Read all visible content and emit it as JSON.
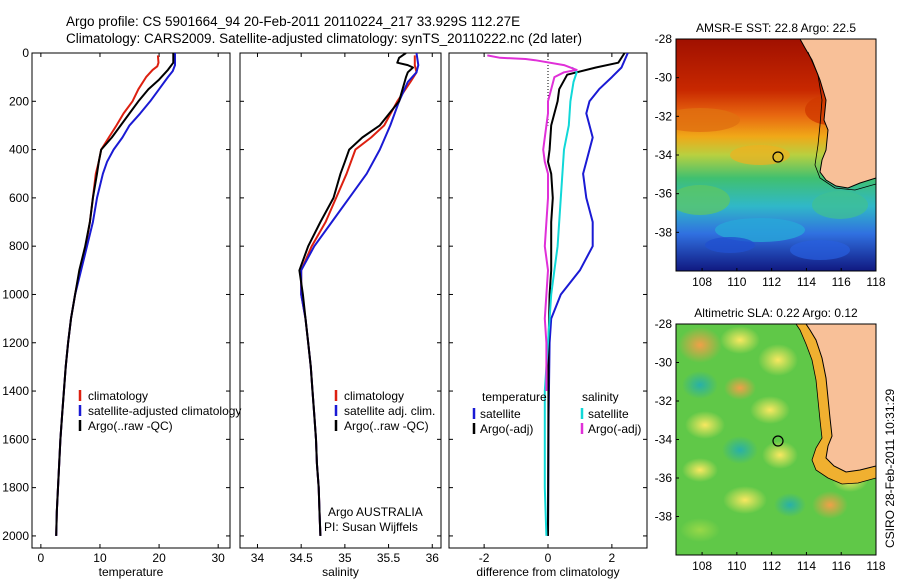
{
  "header": {
    "line1": "Argo profile: CS 5901664_94 20-Feb-2011 20110224_217 33.929S 112.27E",
    "line2": "Climatology: CARS2009. Satellite-adjusted climatology: synTS_20110222.nc (2d later)"
  },
  "side_label": "CSIRO 28-Feb-2011 10:31:29",
  "chart_data": [
    {
      "type": "line",
      "xlabel": "temperature",
      "xlim": [
        -1.5,
        32
      ],
      "ylim": [
        2050,
        0
      ],
      "xticks": [
        "0",
        "10",
        "20",
        "30"
      ],
      "yticks": [
        "0",
        "200",
        "400",
        "600",
        "800",
        "1000",
        "1200",
        "1400",
        "1600",
        "1800",
        "2000"
      ],
      "legend_placement": "center-right",
      "legend": [
        "climatology",
        "satellite-adjusted climatology",
        "Argo(..raw -QC)"
      ],
      "series": [
        {
          "name": "climatology",
          "color": "#dd2010",
          "points": [
            [
              19.8,
              10
            ],
            [
              19.9,
              40
            ],
            [
              19.7,
              55
            ],
            [
              18.9,
              70
            ],
            [
              17.8,
              100
            ],
            [
              16.5,
              150
            ],
            [
              15.5,
              200
            ],
            [
              14,
              250
            ],
            [
              12.8,
              300
            ],
            [
              11.5,
              350
            ],
            [
              10.2,
              400
            ],
            [
              9.8,
              450
            ],
            [
              9.3,
              500
            ],
            [
              8.8,
              600
            ],
            [
              8.3,
              700
            ],
            [
              7.6,
              800
            ],
            [
              6.6,
              900
            ],
            [
              5.8,
              1000
            ],
            [
              5.1,
              1100
            ],
            [
              4.6,
              1200
            ],
            [
              4.2,
              1300
            ],
            [
              3.9,
              1400
            ],
            [
              3.6,
              1500
            ],
            [
              3.3,
              1600
            ],
            [
              3.1,
              1700
            ],
            [
              2.9,
              1800
            ],
            [
              2.7,
              1900
            ],
            [
              2.6,
              2000
            ]
          ]
        },
        {
          "name": "satellite-adjusted climatology",
          "color": "#1a1ad4",
          "points": [
            [
              22.7,
              0
            ],
            [
              22.7,
              50
            ],
            [
              22.3,
              75
            ],
            [
              21.5,
              100
            ],
            [
              20,
              150
            ],
            [
              18.5,
              200
            ],
            [
              16.8,
              250
            ],
            [
              15,
              300
            ],
            [
              13.8,
              350
            ],
            [
              12.3,
              400
            ],
            [
              11.2,
              450
            ],
            [
              10.5,
              500
            ],
            [
              9.5,
              600
            ],
            [
              8.8,
              700
            ],
            [
              7.8,
              800
            ],
            [
              6.8,
              900
            ],
            [
              5.8,
              1000
            ],
            [
              5.1,
              1100
            ],
            [
              4.6,
              1200
            ],
            [
              4.2,
              1300
            ],
            [
              3.9,
              1400
            ],
            [
              3.6,
              1500
            ],
            [
              3.3,
              1600
            ],
            [
              3.1,
              1700
            ],
            [
              2.9,
              1800
            ],
            [
              2.7,
              1900
            ],
            [
              2.6,
              2000
            ]
          ]
        },
        {
          "name": "Argo(..raw -QC)",
          "color": "#000000",
          "points": [
            [
              22.4,
              0
            ],
            [
              22.4,
              40
            ],
            [
              21.5,
              70
            ],
            [
              20,
              110
            ],
            [
              18.2,
              150
            ],
            [
              16.5,
              200
            ],
            [
              15,
              250
            ],
            [
              13.5,
              300
            ],
            [
              12,
              350
            ],
            [
              10.2,
              400
            ],
            [
              9.8,
              450
            ],
            [
              9.5,
              500
            ],
            [
              8.8,
              600
            ],
            [
              8.3,
              700
            ],
            [
              7.5,
              800
            ],
            [
              6.5,
              900
            ],
            [
              5.8,
              1000
            ],
            [
              5.1,
              1100
            ],
            [
              4.6,
              1200
            ],
            [
              4.2,
              1300
            ],
            [
              3.9,
              1400
            ],
            [
              3.6,
              1500
            ],
            [
              3.3,
              1600
            ],
            [
              3.1,
              1700
            ],
            [
              2.9,
              1800
            ],
            [
              2.7,
              1900
            ],
            [
              2.6,
              2000
            ]
          ]
        }
      ]
    },
    {
      "type": "line",
      "xlabel": "salinity",
      "xlim": [
        33.8,
        36.1
      ],
      "ylim": [
        2050,
        0
      ],
      "xticks": [
        "34",
        "34.5",
        "35",
        "35.5",
        "36"
      ],
      "legend_placement": "center-right",
      "legend": [
        "climatology",
        "satellite adj. clim.",
        "Argo(..raw -QC)"
      ],
      "annotation": [
        "Argo AUSTRALIA",
        "PI: Susan Wijffels"
      ],
      "series": [
        {
          "name": "climatology",
          "color": "#dd2010",
          "points": [
            [
              35.8,
              10
            ],
            [
              35.8,
              50
            ],
            [
              35.82,
              80
            ],
            [
              35.75,
              120
            ],
            [
              35.6,
              200
            ],
            [
              35.45,
              300
            ],
            [
              35.3,
              350
            ],
            [
              35.12,
              400
            ],
            [
              35.02,
              500
            ],
            [
              34.9,
              600
            ],
            [
              34.78,
              700
            ],
            [
              34.62,
              800
            ],
            [
              34.5,
              900
            ],
            [
              34.5,
              1000
            ],
            [
              34.55,
              1100
            ],
            [
              34.58,
              1200
            ],
            [
              34.61,
              1300
            ],
            [
              34.63,
              1400
            ],
            [
              34.65,
              1500
            ],
            [
              34.67,
              1600
            ],
            [
              34.68,
              1700
            ],
            [
              34.7,
              1800
            ],
            [
              34.71,
              1900
            ],
            [
              34.72,
              2000
            ]
          ]
        },
        {
          "name": "satellite adj. clim.",
          "color": "#1a1ad4",
          "points": [
            [
              35.82,
              0
            ],
            [
              35.84,
              50
            ],
            [
              35.82,
              80
            ],
            [
              35.72,
              120
            ],
            [
              35.62,
              200
            ],
            [
              35.52,
              300
            ],
            [
              35.4,
              400
            ],
            [
              35.25,
              500
            ],
            [
              35.05,
              600
            ],
            [
              34.85,
              700
            ],
            [
              34.65,
              800
            ],
            [
              34.5,
              900
            ],
            [
              34.5,
              1000
            ],
            [
              34.55,
              1100
            ],
            [
              34.58,
              1200
            ],
            [
              34.61,
              1300
            ],
            [
              34.63,
              1400
            ],
            [
              34.65,
              1500
            ],
            [
              34.67,
              1600
            ],
            [
              34.68,
              1700
            ],
            [
              34.7,
              1800
            ],
            [
              34.71,
              1900
            ],
            [
              34.72,
              2000
            ]
          ]
        },
        {
          "name": "Argo(..raw -QC)",
          "color": "#000000",
          "points": [
            [
              35.7,
              0
            ],
            [
              35.62,
              20
            ],
            [
              35.6,
              40
            ],
            [
              35.72,
              50
            ],
            [
              35.78,
              60
            ],
            [
              35.72,
              80
            ],
            [
              35.7,
              100
            ],
            [
              35.62,
              200
            ],
            [
              35.4,
              300
            ],
            [
              35.2,
              350
            ],
            [
              35.05,
              400
            ],
            [
              35,
              450
            ],
            [
              34.95,
              500
            ],
            [
              34.87,
              600
            ],
            [
              34.72,
              700
            ],
            [
              34.58,
              800
            ],
            [
              34.48,
              900
            ],
            [
              34.52,
              1000
            ],
            [
              34.55,
              1100
            ],
            [
              34.58,
              1200
            ],
            [
              34.61,
              1300
            ],
            [
              34.63,
              1400
            ],
            [
              34.65,
              1500
            ],
            [
              34.67,
              1600
            ],
            [
              34.68,
              1700
            ],
            [
              34.7,
              1800
            ],
            [
              34.71,
              1900
            ],
            [
              34.72,
              2000
            ]
          ]
        }
      ]
    },
    {
      "type": "line",
      "xlabel": "difference from climatology",
      "xlim": [
        -3.1,
        3.1
      ],
      "ylim": [
        2050,
        0
      ],
      "xticks": [
        "-2",
        "0",
        "2"
      ],
      "legend_placement": "center",
      "legend_groups": [
        {
          "title": "temperature",
          "items": [
            "satellite",
            "Argo(-adj)"
          ]
        },
        {
          "title": "salinity",
          "items": [
            "satellite",
            "Argo(-adj)"
          ]
        }
      ],
      "series": [
        {
          "name": "temperature satellite",
          "color": "#1a1ad4",
          "points": [
            [
              2.5,
              0
            ],
            [
              2.3,
              60
            ],
            [
              2.0,
              100
            ],
            [
              1.6,
              150
            ],
            [
              1.3,
              200
            ],
            [
              1.2,
              250
            ],
            [
              1.3,
              300
            ],
            [
              1.4,
              350
            ],
            [
              1.3,
              400
            ],
            [
              1.2,
              450
            ],
            [
              1.1,
              500
            ],
            [
              1.2,
              600
            ],
            [
              1.4,
              700
            ],
            [
              1.4,
              800
            ],
            [
              1.0,
              900
            ],
            [
              0.4,
              1000
            ],
            [
              0.1,
              1100
            ],
            [
              0.05,
              1200
            ],
            [
              0.02,
              1500
            ],
            [
              0.0,
              2000
            ]
          ]
        },
        {
          "name": "temperature Argo(-adj)",
          "color": "#000000",
          "points": [
            [
              2.4,
              0
            ],
            [
              2.2,
              40
            ],
            [
              1.5,
              60
            ],
            [
              0.6,
              90
            ],
            [
              0.35,
              150
            ],
            [
              0.3,
              200
            ],
            [
              0.1,
              300
            ],
            [
              0.05,
              400
            ],
            [
              0.0,
              450
            ],
            [
              0.1,
              500
            ],
            [
              0.15,
              600
            ],
            [
              0.1,
              700
            ],
            [
              0.1,
              800
            ],
            [
              0.1,
              900
            ],
            [
              0.05,
              1000
            ],
            [
              0.02,
              1200
            ],
            [
              0.0,
              2000
            ]
          ]
        },
        {
          "name": "salinity satellite",
          "color": "#10d8d8",
          "points": [
            [
              0.75,
              60
            ],
            [
              0.9,
              80
            ],
            [
              0.8,
              120
            ],
            [
              0.7,
              200
            ],
            [
              0.65,
              300
            ],
            [
              0.5,
              400
            ],
            [
              0.45,
              500
            ],
            [
              0.4,
              600
            ],
            [
              0.35,
              700
            ],
            [
              0.3,
              800
            ],
            [
              0.2,
              900
            ],
            [
              0.1,
              1000
            ],
            [
              0.05,
              1100
            ],
            [
              -0.1,
              1400
            ],
            [
              -0.1,
              1800
            ],
            [
              -0.05,
              2000
            ]
          ]
        },
        {
          "name": "salinity Argo(-adj)",
          "color": "#e030d8",
          "points": [
            [
              -1.9,
              10
            ],
            [
              -1.5,
              20
            ],
            [
              -0.7,
              25
            ],
            [
              -0.4,
              30
            ],
            [
              0.5,
              50
            ],
            [
              0.9,
              70
            ],
            [
              0.5,
              80
            ],
            [
              0.2,
              100
            ],
            [
              0.1,
              150
            ],
            [
              0.0,
              200
            ],
            [
              0.0,
              250
            ],
            [
              -0.05,
              300
            ],
            [
              -0.1,
              350
            ],
            [
              -0.15,
              400
            ],
            [
              -0.1,
              450
            ],
            [
              0.0,
              500
            ],
            [
              0.0,
              600
            ],
            [
              -0.05,
              700
            ],
            [
              -0.1,
              800
            ],
            [
              0.0,
              900
            ],
            [
              -0.05,
              1000
            ],
            [
              -0.1,
              1100
            ],
            [
              -0.05,
              1200
            ],
            [
              -0.05,
              1400
            ]
          ]
        }
      ]
    },
    {
      "type": "heatmap",
      "title": "AMSR-E SST: 22.8 Argo: 22.5",
      "xlim": [
        106.5,
        118
      ],
      "ylim": [
        -40,
        -28
      ],
      "xticks": [
        "108",
        "110",
        "112",
        "114",
        "116",
        "118"
      ],
      "yticks": [
        "-28",
        "-30",
        "-32",
        "-34",
        "-36",
        "-38"
      ],
      "marker": {
        "lon": 112.27,
        "lat": -33.93
      }
    },
    {
      "type": "heatmap",
      "title": "Altimetric SLA: 0.22 Argo: 0.12",
      "xlim": [
        106.5,
        118
      ],
      "ylim": [
        -40,
        -28
      ],
      "xticks": [
        "108",
        "110",
        "112",
        "114",
        "116",
        "118"
      ],
      "yticks": [
        "-28",
        "-30",
        "-32",
        "-34",
        "-36",
        "-38"
      ],
      "marker": {
        "lon": 112.27,
        "lat": -33.93
      }
    }
  ]
}
